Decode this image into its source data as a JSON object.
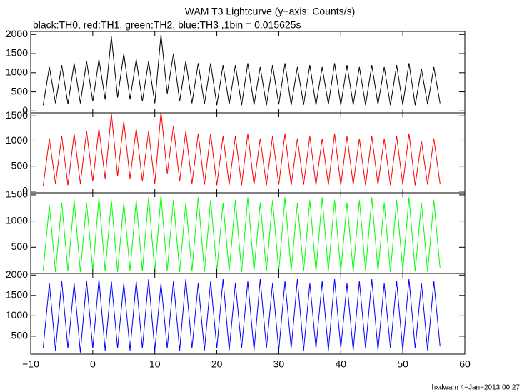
{
  "chart_data": [
    {
      "type": "line",
      "title": "WAM T3 Lightcurve (y−axis: Counts/s)",
      "subtitle": "black:TH0, red:TH1, green:TH2, blue:TH3 ,1bin = 0.015625s",
      "x": [
        -8,
        -7,
        -6,
        -5,
        -4,
        -3,
        -2,
        -1,
        0,
        1,
        2,
        3,
        4,
        5,
        6,
        7,
        8,
        9,
        10,
        11,
        12,
        13,
        14,
        15,
        16,
        17,
        18,
        19,
        20,
        21,
        22,
        23,
        24,
        25,
        26,
        27,
        28,
        29,
        30,
        31,
        32,
        33,
        34,
        35,
        36,
        37,
        38,
        39,
        40,
        41,
        42,
        43,
        44,
        45,
        46,
        47,
        48,
        49,
        50,
        51,
        52,
        53,
        54,
        55,
        56
      ],
      "series": [
        {
          "color": "#000000",
          "values": [
            150,
            1150,
            200,
            1200,
            180,
            1250,
            200,
            1300,
            250,
            1350,
            300,
            1950,
            350,
            1500,
            300,
            1350,
            250,
            1300,
            200,
            2000,
            450,
            1500,
            250,
            1300,
            200,
            1250,
            180,
            1250,
            150,
            1200,
            170,
            1200,
            150,
            1250,
            160,
            1150,
            150,
            1200,
            170,
            1250,
            150,
            1150,
            160,
            1200,
            150,
            1150,
            170,
            1250,
            150,
            1200,
            160,
            1150,
            150,
            1200,
            170,
            1150,
            150,
            1200,
            160,
            1250,
            150,
            1100,
            170,
            1150,
            200
          ]
        }
      ],
      "xlim": [
        -10,
        60
      ],
      "ylim": [
        -50,
        2080
      ],
      "yticks": [
        0,
        500,
        1000,
        1500,
        2000
      ]
    },
    {
      "type": "line",
      "x": [
        -8,
        -7,
        -6,
        -5,
        -4,
        -3,
        -2,
        -1,
        0,
        1,
        2,
        3,
        4,
        5,
        6,
        7,
        8,
        9,
        10,
        11,
        12,
        13,
        14,
        15,
        16,
        17,
        18,
        19,
        20,
        21,
        22,
        23,
        24,
        25,
        26,
        27,
        28,
        29,
        30,
        31,
        32,
        33,
        34,
        35,
        36,
        37,
        38,
        39,
        40,
        41,
        42,
        43,
        44,
        45,
        46,
        47,
        48,
        49,
        50,
        51,
        52,
        53,
        54,
        55,
        56
      ],
      "series": [
        {
          "color": "#ff0000",
          "values": [
            100,
            1050,
            150,
            1100,
            120,
            1150,
            150,
            1200,
            200,
            1250,
            250,
            1550,
            300,
            1400,
            250,
            1250,
            200,
            1200,
            150,
            1580,
            350,
            1300,
            200,
            1200,
            150,
            1150,
            130,
            1150,
            120,
            1100,
            130,
            1100,
            120,
            1150,
            130,
            1050,
            120,
            1100,
            130,
            1150,
            120,
            1050,
            130,
            1100,
            120,
            1050,
            130,
            1150,
            120,
            1100,
            130,
            1050,
            120,
            1100,
            130,
            1050,
            120,
            1100,
            130,
            1150,
            120,
            1000,
            130,
            1050,
            150
          ]
        }
      ],
      "xlim": [
        -10,
        60
      ],
      "ylim": [
        -30,
        1560
      ],
      "yticks": [
        0,
        500,
        1000,
        1500
      ]
    },
    {
      "type": "line",
      "x": [
        -8,
        -7,
        -6,
        -5,
        -4,
        -3,
        -2,
        -1,
        0,
        1,
        2,
        3,
        4,
        5,
        6,
        7,
        8,
        9,
        10,
        11,
        12,
        13,
        14,
        15,
        16,
        17,
        18,
        19,
        20,
        21,
        22,
        23,
        24,
        25,
        26,
        27,
        28,
        29,
        30,
        31,
        32,
        33,
        34,
        35,
        36,
        37,
        38,
        39,
        40,
        41,
        42,
        43,
        44,
        45,
        46,
        47,
        48,
        49,
        50,
        51,
        52,
        53,
        54,
        55,
        56
      ],
      "series": [
        {
          "color": "#00ff00",
          "values": [
            50,
            1300,
            30,
            1350,
            40,
            1400,
            30,
            1350,
            50,
            1450,
            40,
            1400,
            30,
            1350,
            50,
            1400,
            40,
            1450,
            30,
            1500,
            50,
            1400,
            30,
            1350,
            40,
            1450,
            30,
            1400,
            50,
            1350,
            40,
            1400,
            30,
            1450,
            50,
            1350,
            40,
            1400,
            30,
            1450,
            50,
            1350,
            40,
            1400,
            30,
            1450,
            50,
            1400,
            40,
            1350,
            30,
            1400,
            50,
            1450,
            40,
            1350,
            30,
            1400,
            50,
            1450,
            40,
            1350,
            30,
            1400,
            100
          ]
        }
      ],
      "xlim": [
        -10,
        60
      ],
      "ylim": [
        0,
        1540
      ],
      "yticks": [
        500,
        1000,
        1500
      ]
    },
    {
      "type": "line",
      "x": [
        -8,
        -7,
        -6,
        -5,
        -4,
        -3,
        -2,
        -1,
        0,
        1,
        2,
        3,
        4,
        5,
        6,
        7,
        8,
        9,
        10,
        11,
        12,
        13,
        14,
        15,
        16,
        17,
        18,
        19,
        20,
        21,
        22,
        23,
        24,
        25,
        26,
        27,
        28,
        29,
        30,
        31,
        32,
        33,
        34,
        35,
        36,
        37,
        38,
        39,
        40,
        41,
        42,
        43,
        44,
        45,
        46,
        47,
        48,
        49,
        50,
        51,
        52,
        53,
        54,
        55,
        56
      ],
      "series": [
        {
          "color": "#0000ff",
          "values": [
            200,
            1800,
            150,
            1850,
            200,
            1800,
            100,
            1850,
            200,
            1900,
            150,
            1850,
            200,
            1800,
            150,
            1850,
            200,
            1900,
            150,
            1800,
            200,
            1850,
            150,
            1900,
            200,
            1800,
            150,
            1850,
            200,
            1900,
            150,
            1800,
            200,
            1850,
            150,
            1900,
            200,
            1800,
            150,
            1850,
            200,
            1900,
            150,
            1800,
            200,
            1850,
            150,
            1900,
            200,
            1800,
            150,
            1850,
            200,
            1900,
            150,
            1800,
            200,
            1850,
            150,
            1900,
            200,
            1800,
            150,
            1850,
            250
          ]
        }
      ],
      "xlim": [
        -10,
        60
      ],
      "ylim": [
        60,
        2040
      ],
      "yticks": [
        500,
        1000,
        1500,
        2000
      ],
      "xticks": [
        {
          "value": -10,
          "label": "−10"
        },
        0,
        10,
        20,
        30,
        40,
        50,
        60
      ],
      "footer": "hxdwam  4−Jan−2013 00:27"
    }
  ]
}
